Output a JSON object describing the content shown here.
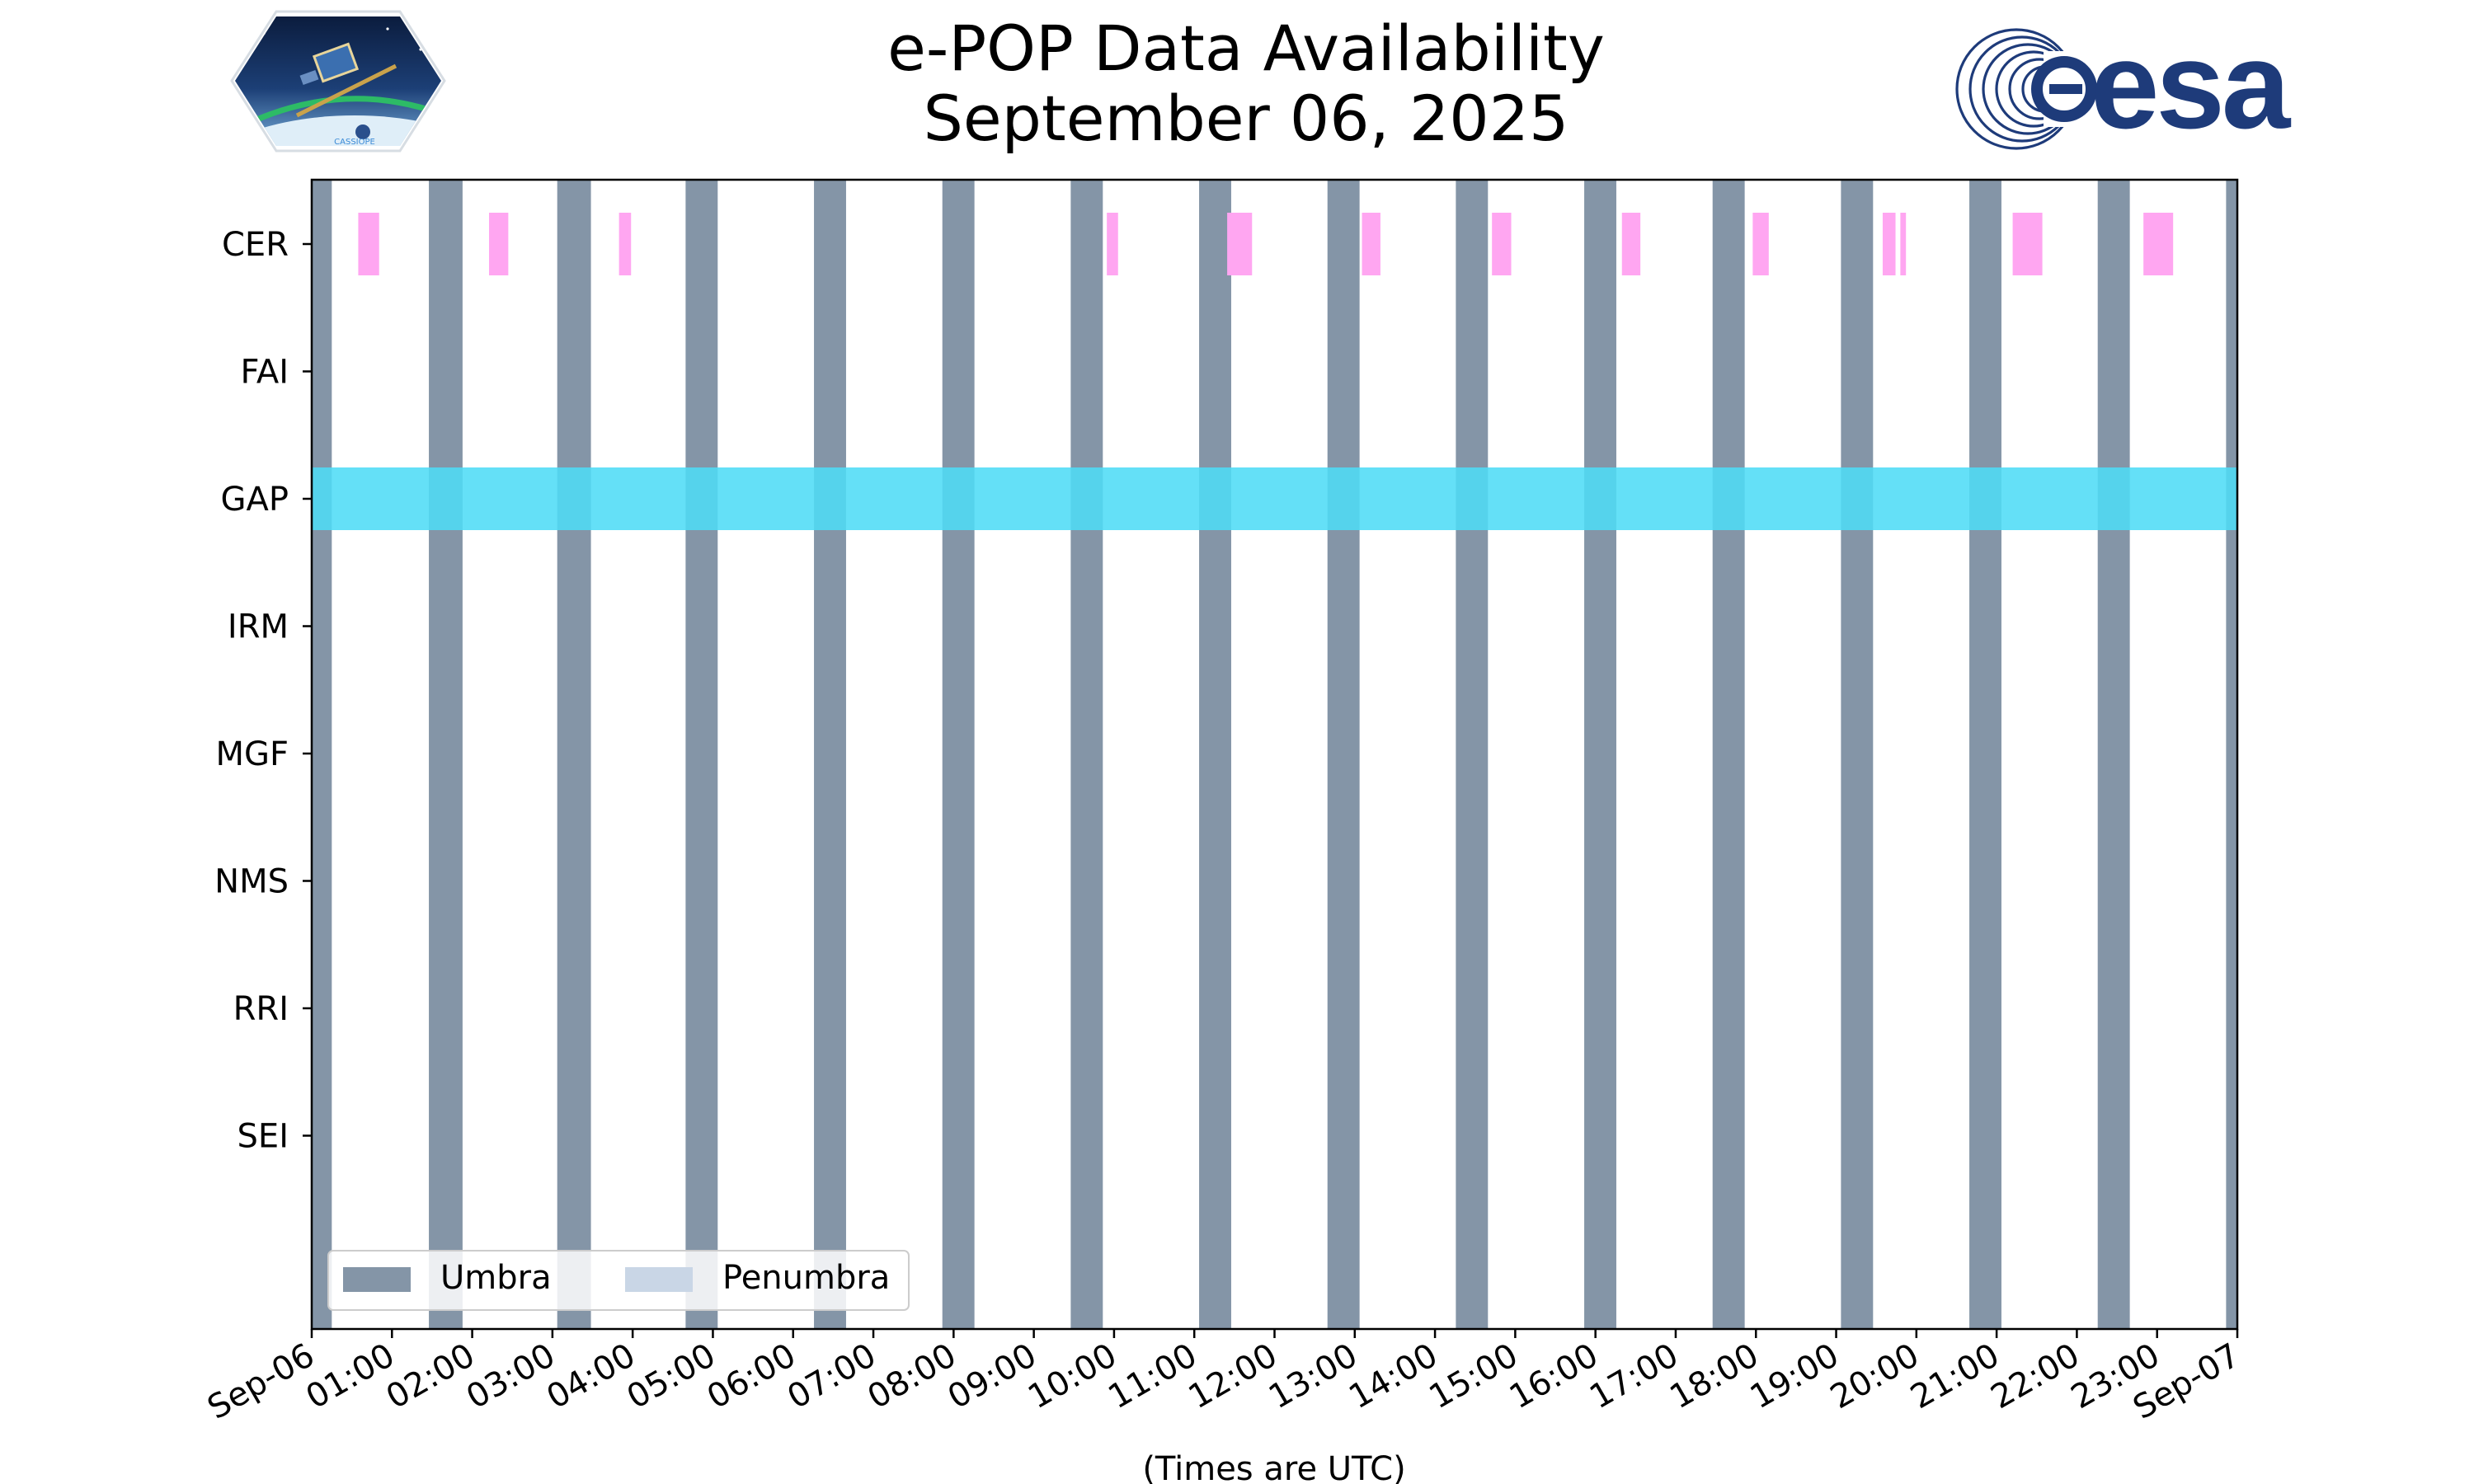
{
  "chart_data": {
    "type": "timeline",
    "title": "e-POP Data Availability",
    "subtitle": "September 06, 2025",
    "xlabel": "(Times are UTC)",
    "x_range_hours": [
      0,
      24
    ],
    "x_tick_labels": [
      "Sep-06",
      "01:00",
      "02:00",
      "03:00",
      "04:00",
      "05:00",
      "06:00",
      "07:00",
      "08:00",
      "09:00",
      "10:00",
      "11:00",
      "12:00",
      "13:00",
      "14:00",
      "15:00",
      "16:00",
      "17:00",
      "18:00",
      "19:00",
      "20:00",
      "21:00",
      "22:00",
      "23:00",
      "Sep-07"
    ],
    "instruments": [
      "CER",
      "FAI",
      "GAP",
      "IRM",
      "MGF",
      "NMS",
      "RRI",
      "SEI"
    ],
    "legend": [
      {
        "label": "Umbra",
        "color": "#8495a7"
      },
      {
        "label": "Penumbra",
        "color": "#c9d6e6"
      }
    ],
    "legend_position": "lower-left",
    "umbra_hours": [
      [
        0.0,
        0.25
      ],
      [
        1.46,
        1.88
      ],
      [
        3.06,
        3.48
      ],
      [
        4.66,
        5.06
      ],
      [
        6.26,
        6.66
      ],
      [
        7.86,
        8.26
      ],
      [
        9.46,
        9.86
      ],
      [
        11.06,
        11.46
      ],
      [
        12.66,
        13.06
      ],
      [
        14.26,
        14.66
      ],
      [
        15.86,
        16.26
      ],
      [
        17.46,
        17.86
      ],
      [
        19.06,
        19.46
      ],
      [
        20.66,
        21.06
      ],
      [
        22.26,
        22.66
      ],
      [
        23.86,
        24.0
      ]
    ],
    "umbra_color": "#8495a7",
    "data_coverage": [
      {
        "instrument": "CER",
        "color": "#ffa6f1",
        "intervals": [
          [
            0.58,
            0.84
          ],
          [
            2.21,
            2.45
          ],
          [
            3.83,
            3.98
          ],
          [
            9.91,
            10.05
          ],
          [
            11.41,
            11.72
          ],
          [
            13.09,
            13.32
          ],
          [
            14.71,
            14.95
          ],
          [
            16.33,
            16.56
          ],
          [
            17.96,
            18.16
          ],
          [
            19.58,
            19.74
          ],
          [
            19.8,
            19.87
          ],
          [
            21.2,
            21.57
          ],
          [
            22.83,
            23.2
          ]
        ]
      },
      {
        "instrument": "GAP",
        "color": "#4fdcf6",
        "intervals": [
          [
            0.0,
            24.0
          ]
        ]
      }
    ]
  }
}
